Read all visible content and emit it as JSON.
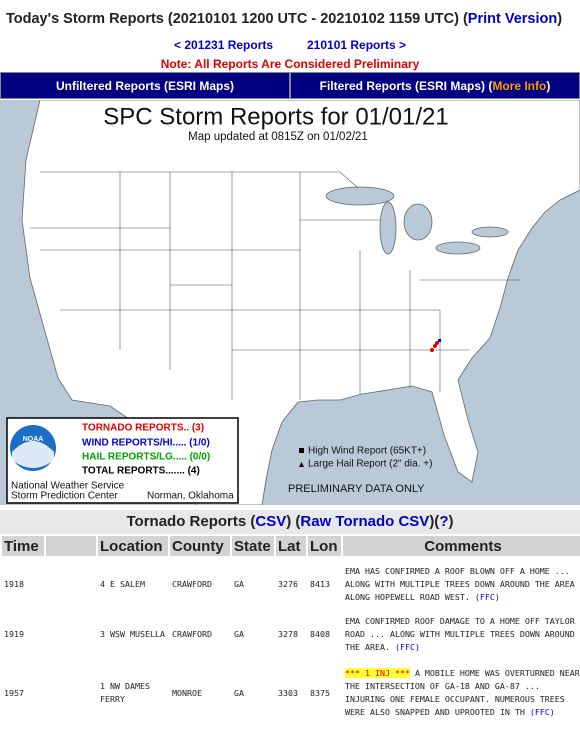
{
  "header": {
    "title": "Today's Storm Reports (20210101 1200 UTC - 20210102 1159 UTC)",
    "open": "(",
    "print_link": "Print Version",
    "close": ")"
  },
  "nav": {
    "prev": "< 201231 Reports",
    "next": "210101 Reports >",
    "note": "Note: All Reports Are Considered Preliminary"
  },
  "tabs": {
    "unfiltered": "Unfiltered Reports (ESRI Maps)",
    "filtered": "Filtered Reports (ESRI Maps)",
    "open": "(",
    "more_info": "More Info",
    "close": ")"
  },
  "map": {
    "title": "SPC Storm Reports for 01/01/21",
    "updated": "Map updated at 0815Z on 01/02/21",
    "legend": {
      "tornado": "TORNADO REPORTS.. (3)",
      "wind": "WIND REPORTS/HI..... (1/0)",
      "hail": "HAIL REPORTS/LG..... (0/0)",
      "total": "TOTAL REPORTS....... (4)"
    },
    "logo": "NOAA",
    "org": [
      "National Weather Service",
      "Storm Prediction Center"
    ],
    "location": "Norman, Oklahoma",
    "symbols": {
      "wind": "High Wind Report (65KT+)",
      "hail": "Large Hail Report (2\" dia. +)"
    },
    "disclaimer": "PRELIMINARY DATA ONLY"
  },
  "table": {
    "heading": [
      {
        "text": "Tornado Reports (",
        "link": false
      },
      {
        "text": "CSV",
        "link": true
      },
      {
        "text": ") (",
        "link": false
      },
      {
        "text": "Raw Tornado CSV",
        "link": true
      },
      {
        "text": ")(",
        "link": false
      },
      {
        "text": "?",
        "link": true
      },
      {
        "text": ")",
        "link": false
      }
    ],
    "columns": [
      "Time",
      "Location",
      "County",
      "State",
      "Lat",
      "Lon",
      "Comments"
    ],
    "rows": [
      {
        "time": "1918",
        "location": "4 E SALEM",
        "county": "CRAWFORD",
        "state": "GA",
        "lat": "3276",
        "lon": "8413",
        "comments": "EMA HAS CONFIRMED A ROOF BLOWN OFF A HOME ... ALONG WITH MULTIPLE TREES DOWN AROUND THE AREA ALONG HOPEWELL ROAD WEST.",
        "office": "(FFC)"
      },
      {
        "time": "1919",
        "location": "3 WSW MUSELLA",
        "county": "CRAWFORD",
        "state": "GA",
        "lat": "3278",
        "lon": "8408",
        "comments": "EMA CONFIRMED ROOF DAMAGE TO A HOME OFF TAYLOR ROAD ... ALONG WITH MULTIPLE TREES DOWN AROUND THE AREA.",
        "office": "(FFC)"
      },
      {
        "time": "1957",
        "location": "1 NW DAMES FERRY",
        "county": "MONROE",
        "state": "GA",
        "lat": "3303",
        "lon": "8375",
        "injuries": "*** 1 INJ ***",
        "comments": "A MOBILE HOME WAS OVERTURNED NEAR THE INTERSECTION OF GA-18 AND GA-87 ... INJURING ONE FEMALE OCCUPANT. NUMEROUS TREES WERE ALSO SNAPPED AND UPROOTED IN TH",
        "office": "(FFC)"
      }
    ]
  }
}
